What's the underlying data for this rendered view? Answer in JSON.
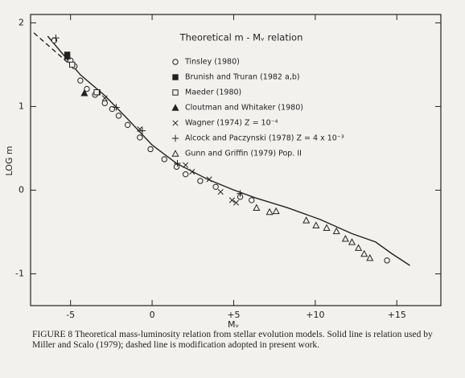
{
  "chart_data": {
    "type": "scatter",
    "title": "Theoretical m - Mᵥ relation",
    "x_label": "Mᵥ",
    "y_label": "LOG m",
    "caption": "FIGURE 8  Theoretical mass-luminosity relation from stellar evolution models. Solid line is relation used by Miller and Scalo (1979); dashed line is modification adopted in present work.",
    "xlim": [
      -7.45,
      17.7
    ],
    "ylim": [
      -1.38,
      2.1
    ],
    "xticks": [
      -5,
      0,
      {
        "value": 5,
        "label": "+5"
      },
      {
        "value": 10,
        "label": "+10"
      },
      {
        "value": 15,
        "label": "+15"
      }
    ],
    "yticks": [
      -1,
      0,
      1,
      2
    ],
    "series": [
      {
        "name": "Tinsley (1980)",
        "marker": "circle",
        "color": "#222",
        "x": [
          -6.0,
          -5.0,
          -4.75,
          -4.4,
          -4.0,
          -3.5,
          -2.9,
          -2.45,
          -2.05,
          -1.5,
          -0.75,
          -0.1,
          0.75,
          1.5,
          2.05,
          2.95,
          3.9,
          5.4,
          6.1,
          14.4
        ],
        "values": [
          1.79,
          1.55,
          1.48,
          1.31,
          1.21,
          1.14,
          1.04,
          0.97,
          0.89,
          0.78,
          0.63,
          0.49,
          0.37,
          0.28,
          0.19,
          0.11,
          0.04,
          -0.08,
          -0.12,
          -0.84
        ]
      },
      {
        "name": "Brunish and Truran (1982 a,b)",
        "marker": "filled-square",
        "color": "#222",
        "x": [
          -5.2,
          -3.35
        ],
        "values": [
          1.62,
          1.17
        ]
      },
      {
        "name": "Maeder (1980)",
        "marker": "square",
        "color": "#222",
        "x": [
          -4.9,
          -3.4
        ],
        "values": [
          1.5,
          1.17
        ]
      },
      {
        "name": "Cloutman and Whitaker (1980)",
        "marker": "filled-triangle",
        "color": "#222",
        "x": [
          -5.2,
          -4.15
        ],
        "values": [
          1.6,
          1.16
        ]
      },
      {
        "name": "Wagner (1974) Z = 10⁻⁴",
        "marker": "x",
        "color": "#222",
        "x": [
          -2.9,
          -0.75,
          2.05,
          2.45,
          3.5,
          4.2,
          4.9,
          5.15
        ],
        "values": [
          1.1,
          0.73,
          0.3,
          0.22,
          0.13,
          -0.02,
          -0.12,
          -0.15
        ]
      },
      {
        "name": "Alcock and Paczynski (1978) Z = 4 x 10⁻³",
        "marker": "plus",
        "color": "#222",
        "x": [
          -5.9,
          -2.2,
          -0.6,
          1.55,
          5.4
        ],
        "values": [
          1.82,
          0.99,
          0.71,
          0.32,
          -0.04
        ]
      },
      {
        "name": "Gunn and Griffin (1979) Pop. II",
        "marker": "triangle",
        "color": "#222",
        "x": [
          6.4,
          7.2,
          7.6,
          9.45,
          10.05,
          10.7,
          11.3,
          11.85,
          12.25,
          12.65,
          13.0,
          13.35
        ],
        "values": [
          -0.21,
          -0.26,
          -0.25,
          -0.36,
          -0.42,
          -0.45,
          -0.49,
          -0.58,
          -0.62,
          -0.69,
          -0.76,
          -0.81
        ]
      }
    ],
    "solid_line": {
      "x": [
        -6.4,
        -4.4,
        -2.9,
        -1.5,
        0,
        1.5,
        3.4,
        4.9,
        6.3,
        8.3,
        10.3,
        12.25,
        13.7,
        14.7,
        15.8
      ],
      "values": [
        1.84,
        1.38,
        1.13,
        0.85,
        0.54,
        0.32,
        0.13,
        0.01,
        -0.09,
        -0.21,
        -0.35,
        -0.52,
        -0.62,
        -0.76,
        -0.9
      ]
    },
    "dashed_line": {
      "x": [
        -7.25,
        -4.9
      ],
      "values": [
        1.88,
        1.48
      ]
    }
  }
}
